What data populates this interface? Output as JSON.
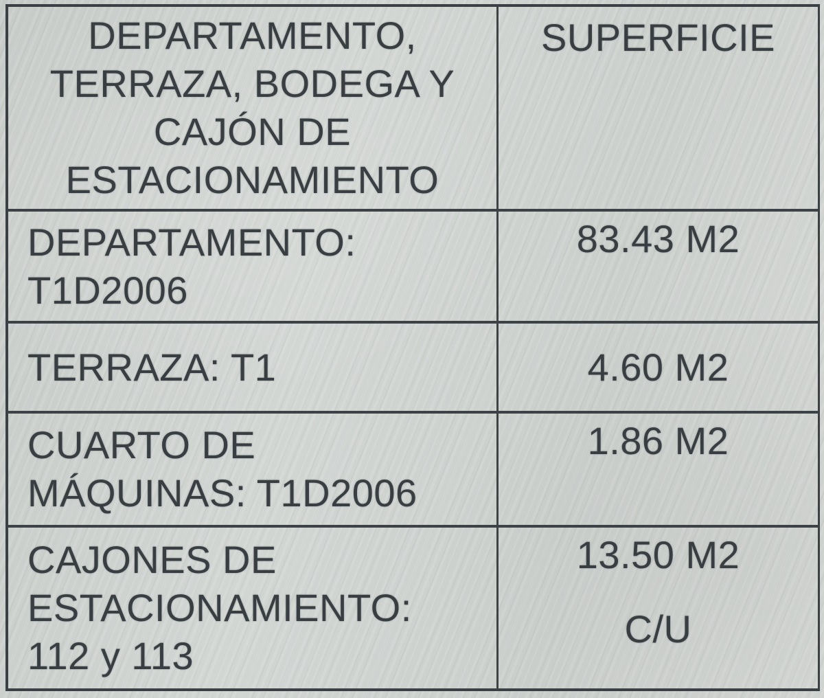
{
  "table": {
    "header": {
      "concept": "DEPARTAMENTO,\nTERRAZA, BODEGA Y\nCAJÓN DE\nESTACIONAMIENTO",
      "superficie": "SUPERFICIE"
    },
    "rows": [
      {
        "concept": "DEPARTAMENTO:\nT1D2006",
        "superficie": "83.43 M2"
      },
      {
        "concept": "TERRAZA: T1",
        "superficie": "4.60 M2"
      },
      {
        "concept": "CUARTO DE\nMÁQUINAS: T1D2006",
        "superficie": "1.86 M2"
      },
      {
        "concept": "CAJONES DE\nESTACIONAMIENTO:\n112 y 113",
        "superficie": "13.50 M2",
        "superficie_note": "C/U"
      }
    ],
    "colors": {
      "paper": "#cdd1ce",
      "ink": "#383e41",
      "border": "#3a4043"
    }
  }
}
